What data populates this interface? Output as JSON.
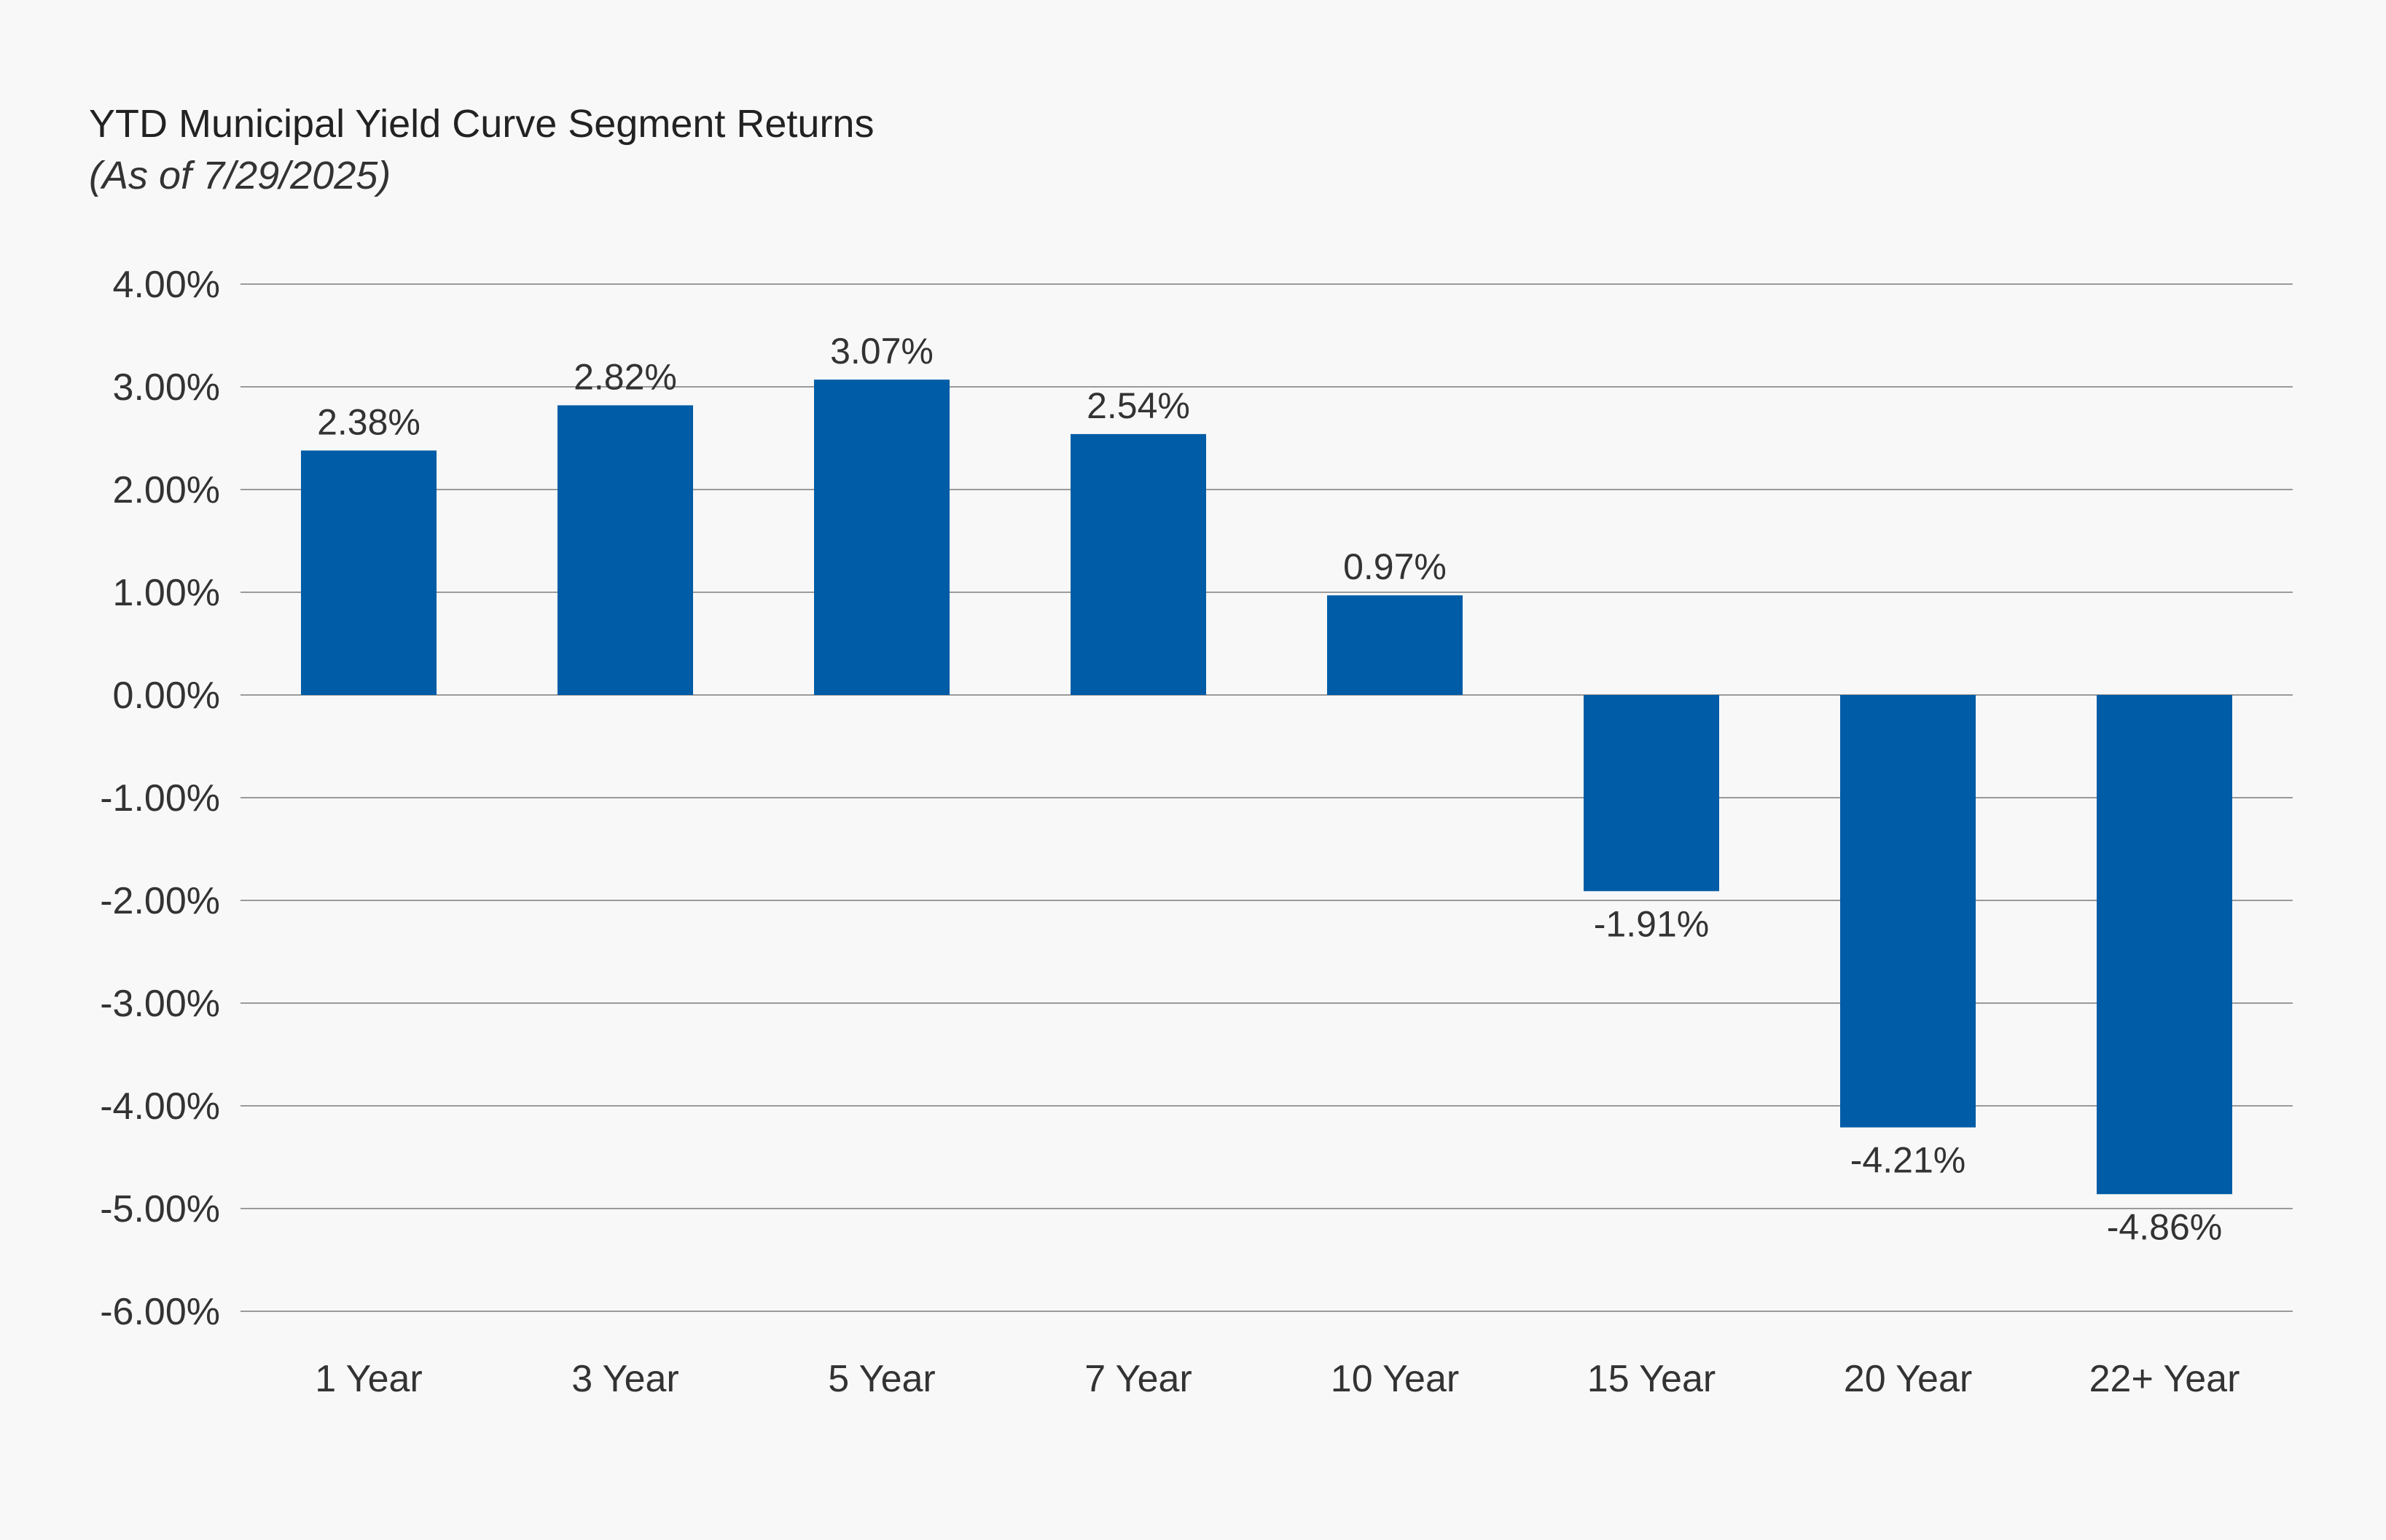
{
  "chart_data": {
    "type": "bar",
    "title": "YTD Municipal Yield Curve Segment Returns",
    "subtitle": "(As of 7/29/2025)",
    "categories": [
      "1 Year",
      "3 Year",
      "5 Year",
      "7 Year",
      "10 Year",
      "15 Year",
      "20 Year",
      "22+ Year"
    ],
    "values": [
      2.38,
      2.82,
      3.07,
      2.54,
      0.97,
      -1.91,
      -4.21,
      -4.86
    ],
    "data_labels": [
      "2.38%",
      "2.82%",
      "3.07%",
      "2.54%",
      "0.97%",
      "-1.91%",
      "-4.21%",
      "-4.86%"
    ],
    "ylim": [
      -6,
      4
    ],
    "yticks": [
      4,
      3,
      2,
      1,
      0,
      -1,
      -2,
      -3,
      -4,
      -5,
      -6
    ],
    "ytick_labels": [
      "4.00%",
      "3.00%",
      "2.00%",
      "1.00%",
      "0.00%",
      "-1.00%",
      "-2.00%",
      "-3.00%",
      "-4.00%",
      "-5.00%",
      "-6.00%"
    ],
    "xlabel": "",
    "ylabel": "",
    "grid": true,
    "legend": "none",
    "bar_color": "#005ca6",
    "grid_color": "#9a9a9a"
  }
}
